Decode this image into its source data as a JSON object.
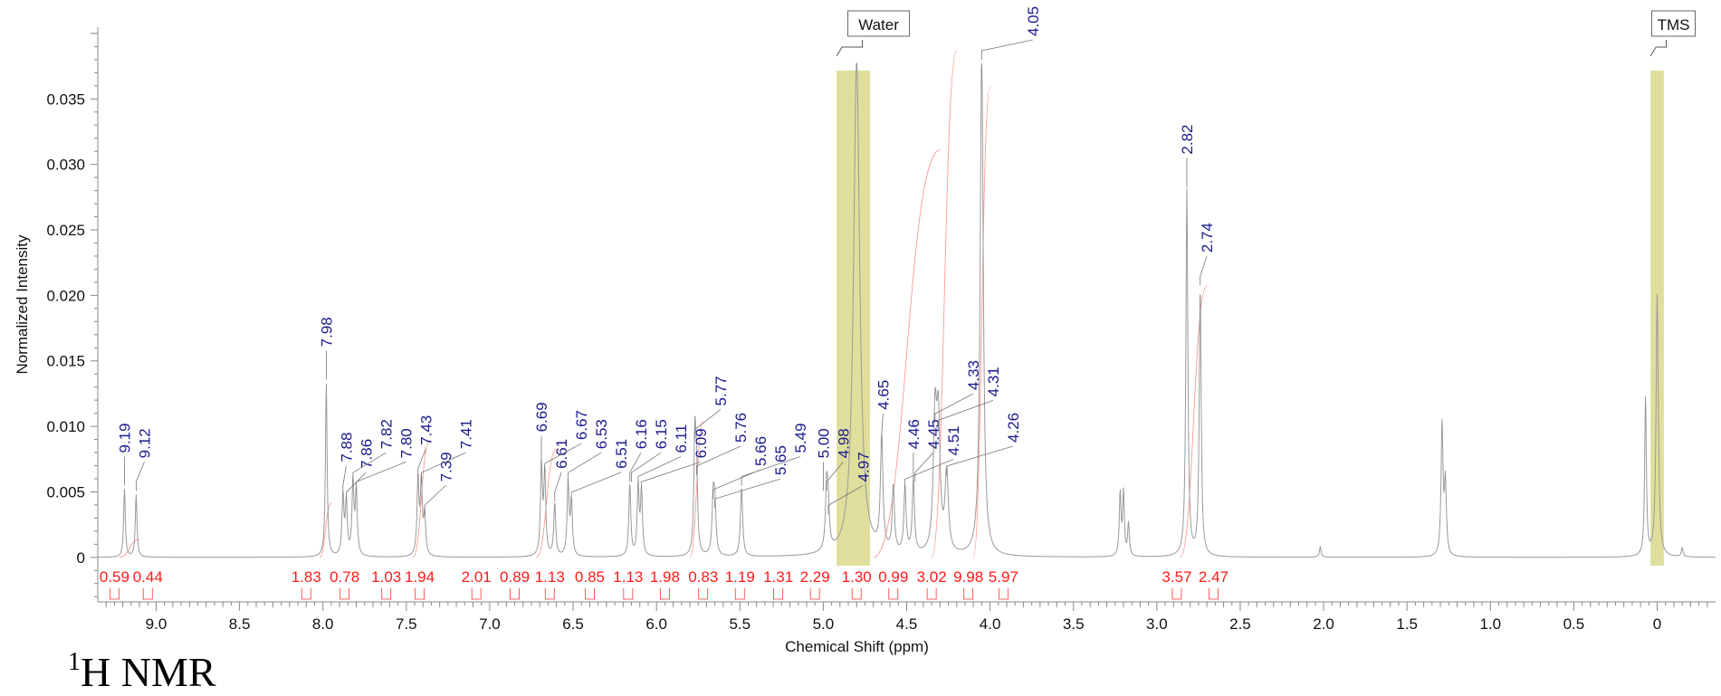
{
  "chart_data": {
    "type": "line",
    "xlabel": "Chemical Shift (ppm)",
    "ylabel": "Normalized Intensity",
    "xlim": [
      9.35,
      -0.35
    ],
    "ylim": [
      -0.0034,
      0.042
    ],
    "x_ticks": [
      "9.0",
      "8.5",
      "8.0",
      "7.5",
      "7.0",
      "6.5",
      "6.0",
      "5.5",
      "5.0",
      "4.5",
      "4.0",
      "3.5",
      "3.0",
      "2.5",
      "2.0",
      "1.5",
      "1.0",
      "0.5",
      "0"
    ],
    "x_tick_values": [
      9.0,
      8.5,
      8.0,
      7.5,
      7.0,
      6.5,
      6.0,
      5.5,
      5.0,
      4.5,
      4.0,
      3.5,
      3.0,
      2.5,
      2.0,
      1.5,
      1.0,
      0.5,
      0
    ],
    "y_ticks": [
      "0",
      "0.005",
      "0.010",
      "0.015",
      "0.020",
      "0.025",
      "0.030",
      "0.035"
    ],
    "y_tick_values": [
      0,
      0.005,
      0.01,
      0.015,
      0.02,
      0.025,
      0.03,
      0.035
    ],
    "spectrum_peaks": [
      {
        "ppm": 9.19,
        "height": 0.0052,
        "width": 0.006
      },
      {
        "ppm": 9.12,
        "height": 0.0048,
        "width": 0.006
      },
      {
        "ppm": 7.98,
        "height": 0.0133,
        "width": 0.006
      },
      {
        "ppm": 7.88,
        "height": 0.0045,
        "width": 0.007
      },
      {
        "ppm": 7.86,
        "height": 0.004,
        "width": 0.007
      },
      {
        "ppm": 7.82,
        "height": 0.0055,
        "width": 0.007
      },
      {
        "ppm": 7.8,
        "height": 0.0048,
        "width": 0.007
      },
      {
        "ppm": 7.43,
        "height": 0.0058,
        "width": 0.007
      },
      {
        "ppm": 7.41,
        "height": 0.0055,
        "width": 0.007
      },
      {
        "ppm": 7.39,
        "height": 0.003,
        "width": 0.007
      },
      {
        "ppm": 6.69,
        "height": 0.0068,
        "width": 0.007
      },
      {
        "ppm": 6.67,
        "height": 0.0062,
        "width": 0.007
      },
      {
        "ppm": 6.61,
        "height": 0.004,
        "width": 0.007
      },
      {
        "ppm": 6.53,
        "height": 0.0055,
        "width": 0.007
      },
      {
        "ppm": 6.51,
        "height": 0.004,
        "width": 0.007
      },
      {
        "ppm": 6.16,
        "height": 0.0055,
        "width": 0.007
      },
      {
        "ppm": 6.11,
        "height": 0.0052,
        "width": 0.007
      },
      {
        "ppm": 6.09,
        "height": 0.0048,
        "width": 0.007
      },
      {
        "ppm": 5.77,
        "height": 0.0088,
        "width": 0.007
      },
      {
        "ppm": 5.76,
        "height": 0.006,
        "width": 0.007
      },
      {
        "ppm": 5.66,
        "height": 0.0042,
        "width": 0.008
      },
      {
        "ppm": 5.65,
        "height": 0.0035,
        "width": 0.008
      },
      {
        "ppm": 5.49,
        "height": 0.0052,
        "width": 0.008
      },
      {
        "ppm": 4.98,
        "height": 0.0048,
        "width": 0.008
      },
      {
        "ppm": 4.97,
        "height": 0.003,
        "width": 0.008
      },
      {
        "ppm": 4.8,
        "height": 0.038,
        "width": 0.022
      },
      {
        "ppm": 4.65,
        "height": 0.0085,
        "width": 0.009
      },
      {
        "ppm": 4.58,
        "height": 0.005,
        "width": 0.008
      },
      {
        "ppm": 4.51,
        "height": 0.005,
        "width": 0.008
      },
      {
        "ppm": 4.46,
        "height": 0.0055,
        "width": 0.008
      },
      {
        "ppm": 4.33,
        "height": 0.01,
        "width": 0.012
      },
      {
        "ppm": 4.31,
        "height": 0.0095,
        "width": 0.012
      },
      {
        "ppm": 4.26,
        "height": 0.006,
        "width": 0.012
      },
      {
        "ppm": 4.05,
        "height": 0.0388,
        "width": 0.011
      },
      {
        "ppm": 3.22,
        "height": 0.0048,
        "width": 0.006
      },
      {
        "ppm": 3.2,
        "height": 0.0048,
        "width": 0.006
      },
      {
        "ppm": 3.17,
        "height": 0.0025,
        "width": 0.006
      },
      {
        "ppm": 2.82,
        "height": 0.028,
        "width": 0.007
      },
      {
        "ppm": 2.74,
        "height": 0.0205,
        "width": 0.007
      },
      {
        "ppm": 2.02,
        "height": 0.0008,
        "width": 0.006
      },
      {
        "ppm": 1.29,
        "height": 0.01,
        "width": 0.007
      },
      {
        "ppm": 1.27,
        "height": 0.0055,
        "width": 0.007
      },
      {
        "ppm": 0.07,
        "height": 0.0122,
        "width": 0.006
      },
      {
        "ppm": 0.0,
        "height": 0.02,
        "width": 0.008
      },
      {
        "ppm": -0.15,
        "height": 0.0007,
        "width": 0.006
      }
    ],
    "peak_labels": [
      {
        "text": "9.19",
        "ppm": 9.19
      },
      {
        "text": "9.12",
        "ppm": 9.12
      },
      {
        "text": "7.98",
        "ppm": 7.98
      },
      {
        "text": "7.88",
        "ppm": 7.88
      },
      {
        "text": "7.86",
        "ppm": 7.86
      },
      {
        "text": "7.82",
        "ppm": 7.82
      },
      {
        "text": "7.80",
        "ppm": 7.8
      },
      {
        "text": "7.43",
        "ppm": 7.43
      },
      {
        "text": "7.39",
        "ppm": 7.39
      },
      {
        "text": "7.41",
        "ppm": 7.41
      },
      {
        "text": "6.69",
        "ppm": 6.69
      },
      {
        "text": "6.61",
        "ppm": 6.61
      },
      {
        "text": "6.67",
        "ppm": 6.67
      },
      {
        "text": "6.53",
        "ppm": 6.53
      },
      {
        "text": "6.51",
        "ppm": 6.51
      },
      {
        "text": "6.16",
        "ppm": 6.16
      },
      {
        "text": "6.15",
        "ppm": 6.15
      },
      {
        "text": "6.11",
        "ppm": 6.11
      },
      {
        "text": "6.09",
        "ppm": 6.09
      },
      {
        "text": "5.77",
        "ppm": 5.77
      },
      {
        "text": "5.76",
        "ppm": 5.76
      },
      {
        "text": "5.66",
        "ppm": 5.66
      },
      {
        "text": "5.65",
        "ppm": 5.65
      },
      {
        "text": "5.49",
        "ppm": 5.49
      },
      {
        "text": "5.00",
        "ppm": 5.0
      },
      {
        "text": "4.98",
        "ppm": 4.98
      },
      {
        "text": "4.97",
        "ppm": 4.97
      },
      {
        "text": "4.65",
        "ppm": 4.65
      },
      {
        "text": "4.46",
        "ppm": 4.46
      },
      {
        "text": "4.45",
        "ppm": 4.45
      },
      {
        "text": "4.51",
        "ppm": 4.51
      },
      {
        "text": "4.33",
        "ppm": 4.33
      },
      {
        "text": "4.31",
        "ppm": 4.31
      },
      {
        "text": "4.26",
        "ppm": 4.26
      },
      {
        "text": "4.05",
        "ppm": 4.05
      },
      {
        "text": "2.82",
        "ppm": 2.82
      },
      {
        "text": "2.74",
        "ppm": 2.74
      }
    ],
    "integrals": [
      {
        "value": "0.59",
        "ppm": 9.25
      },
      {
        "value": "0.44",
        "ppm": 9.05
      },
      {
        "value": "1.83",
        "ppm": 8.1
      },
      {
        "value": "0.78",
        "ppm": 7.87
      },
      {
        "value": "1.03",
        "ppm": 7.62
      },
      {
        "value": "1.94",
        "ppm": 7.42
      },
      {
        "value": "2.01",
        "ppm": 7.08
      },
      {
        "value": "0.89",
        "ppm": 6.85
      },
      {
        "value": "1.13",
        "ppm": 6.64
      },
      {
        "value": "0.85",
        "ppm": 6.4
      },
      {
        "value": "1.13",
        "ppm": 6.17
      },
      {
        "value": "1.98",
        "ppm": 5.95
      },
      {
        "value": "0.83",
        "ppm": 5.72
      },
      {
        "value": "1.19",
        "ppm": 5.5
      },
      {
        "value": "1.31",
        "ppm": 5.27
      },
      {
        "value": "2.29",
        "ppm": 5.05
      },
      {
        "value": "1.30",
        "ppm": 4.8
      },
      {
        "value": "0.99",
        "ppm": 4.58
      },
      {
        "value": "3.02",
        "ppm": 4.35
      },
      {
        "value": "9.98",
        "ppm": 4.13
      },
      {
        "value": "5.97",
        "ppm": 3.92
      },
      {
        "value": "3.57",
        "ppm": 2.88
      },
      {
        "value": "2.47",
        "ppm": 2.66
      }
    ],
    "regions": [
      {
        "label": "Water",
        "from": 4.92,
        "to": 4.72,
        "color": "#d9d98c"
      },
      {
        "label": "TMS",
        "from": 0.04,
        "to": -0.04,
        "color": "#d9d98c"
      }
    ],
    "colors": {
      "spectrum": "#999999",
      "integral": "#ff3333",
      "peak_label": "#1a1a8c",
      "region": "#d9d98c"
    }
  },
  "caption": {
    "superscript": "1",
    "text": "H NMR"
  }
}
